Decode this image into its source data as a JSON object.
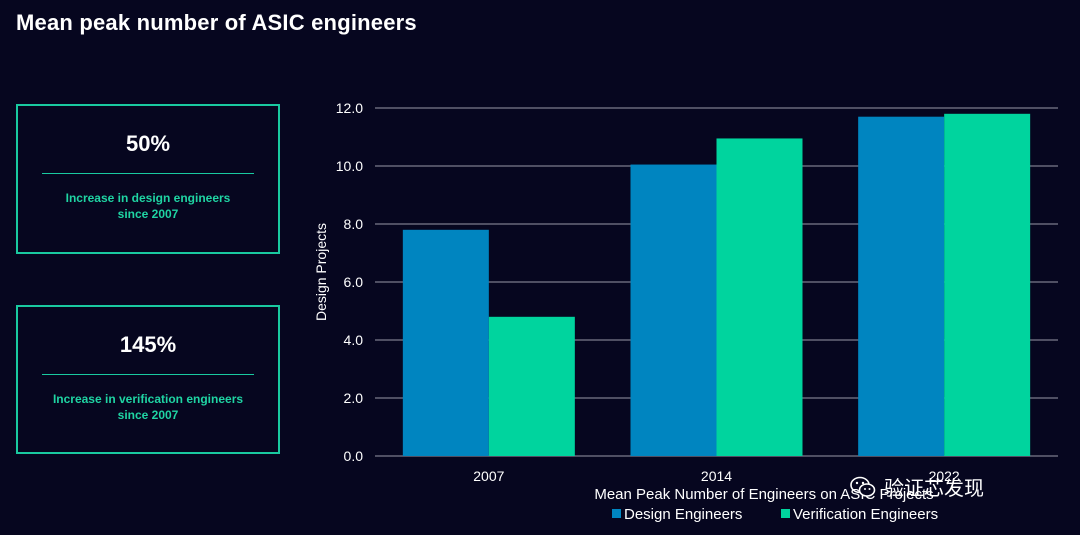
{
  "page": {
    "title": "Mean peak number of ASIC engineers"
  },
  "stats": [
    {
      "value": "50%",
      "label_line1": "Increase in design engineers",
      "label_line2": "since 2007"
    },
    {
      "value": "145%",
      "label_line1": "Increase in verification engineers",
      "label_line2": "since 2007"
    }
  ],
  "watermark": {
    "text": "验证芯发现",
    "icon": "wechat-icon"
  },
  "colors": {
    "background": "#06061f",
    "accent": "#19c9a0",
    "design": "#0085c0",
    "verification": "#00d49e",
    "gridline": "#c9c9d6"
  },
  "chart_data": {
    "type": "bar",
    "categories": [
      "2007",
      "2014",
      "2022"
    ],
    "series": [
      {
        "name": "Design Engineers",
        "values": [
          7.8,
          10.05,
          11.7
        ]
      },
      {
        "name": "Verification Engineers",
        "values": [
          4.8,
          10.95,
          11.8
        ]
      }
    ],
    "xlabel": "Mean Peak Number of Engineers on ASIC Projects",
    "ylabel": "Design Projects",
    "ylim": [
      0,
      12
    ],
    "yticks": [
      "0.0",
      "2.0",
      "4.0",
      "6.0",
      "8.0",
      "10.0",
      "12.0"
    ],
    "grid": true,
    "legend": "bottom"
  }
}
